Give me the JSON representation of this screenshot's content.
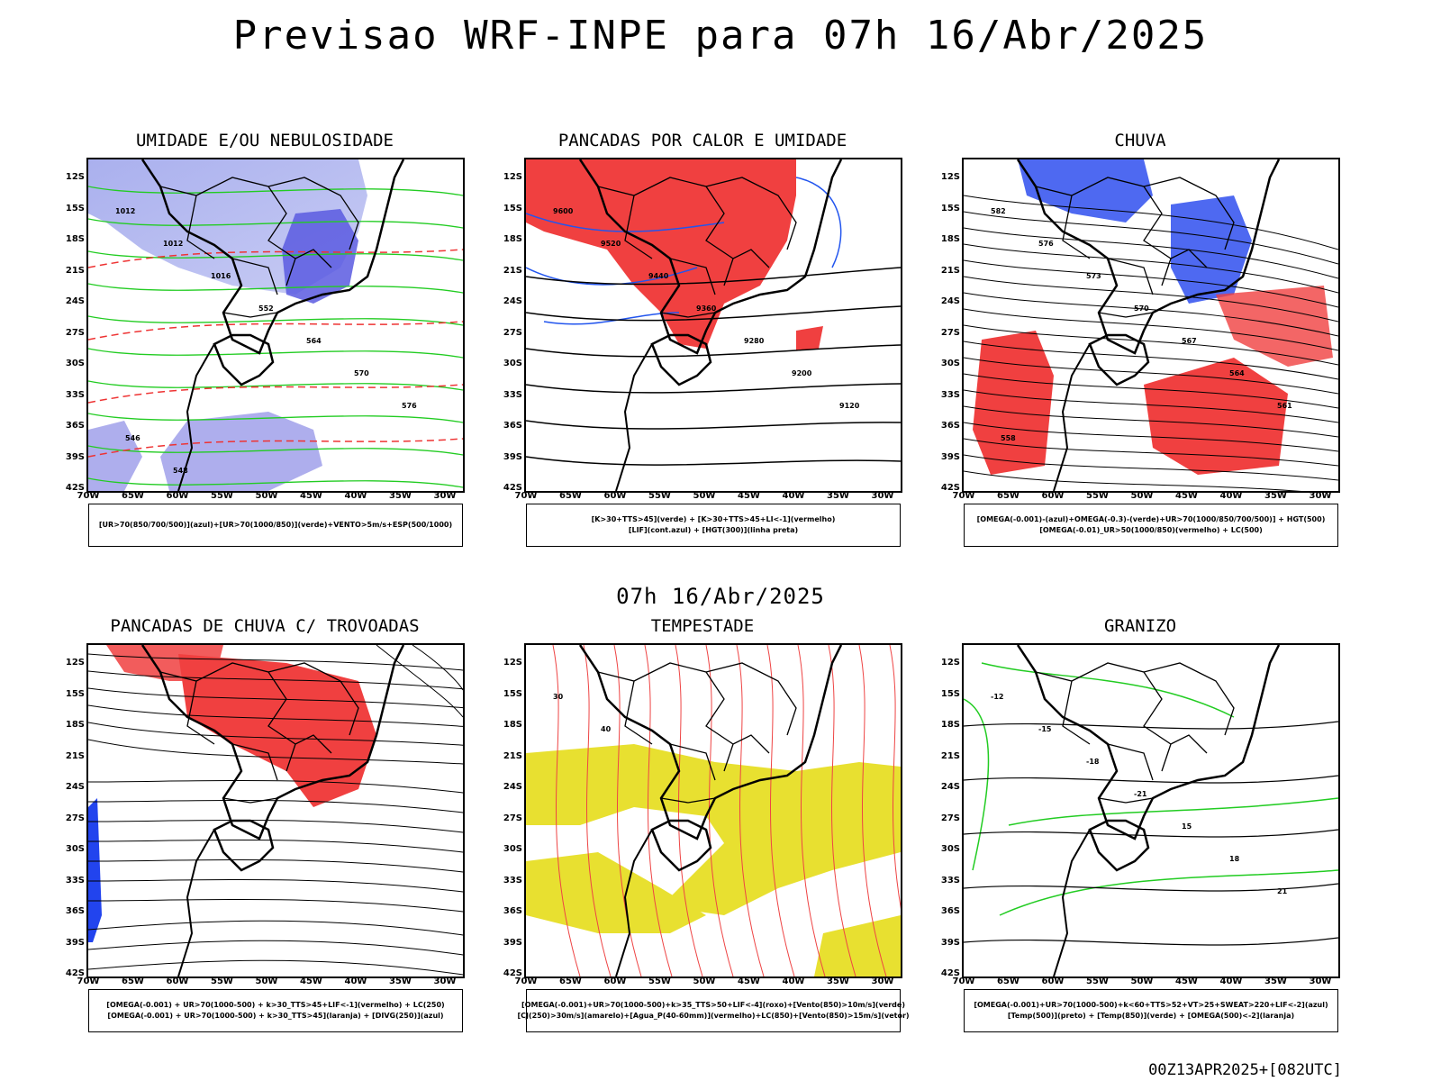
{
  "header": {
    "title": "Previsao WRF-INPE  para 07h 16/Abr/2025"
  },
  "middle_title": "07h 16/Abr/2025",
  "footer": {
    "run": "00Z13APR2025+[082UTC]"
  },
  "axes": {
    "latitudes": [
      "12S",
      "15S",
      "18S",
      "21S",
      "24S",
      "27S",
      "30S",
      "33S",
      "36S",
      "39S",
      "42S"
    ],
    "longitudes": [
      "70W",
      "65W",
      "60W",
      "55W",
      "50W",
      "45W",
      "40W",
      "35W",
      "30W"
    ]
  },
  "panels": [
    {
      "title": "UMIDADE E/OU NEBULOSIDADE",
      "legend": [
        "[UR>70(850/700/500)](azul)+[UR>70(1000/850)](verde)+VENTO>5m/s+ESP(500/1000)"
      ],
      "contour_labels": [
        "1012",
        "1012",
        "1016",
        "552",
        "564",
        "570",
        "576",
        "546",
        "548"
      ],
      "colors": {
        "fill": "#9a9ae8",
        "fill_dark": "#5a5ae0",
        "lines": "#22cc22",
        "dashed": "#ee3333"
      }
    },
    {
      "title": "PANCADAS POR CALOR E UMIDADE",
      "legend": [
        "[K>30+TTS>45](verde) + [K>30+TTS>45+LI<-1](vermelho)",
        "[LIF](cont.azul) + [HGT(300)](linha preta)"
      ],
      "contour_labels": [
        "9600",
        "9520",
        "9440",
        "9360",
        "9280",
        "9200",
        "9120"
      ],
      "colors": {
        "fill": "#f04040",
        "lines": "#2255ee",
        "hgt": "#000000"
      }
    },
    {
      "title": "CHUVA",
      "legend": [
        "[OMEGA(-0.001)-(azul)+OMEGA(-0.3)-(verde)+UR>70(1000/850/700/500)] + HGT(500)",
        "[OMEGA(-0.01)_UR>50(1000/850)(vermelho) + LC(500)"
      ],
      "contour_labels": [
        "582",
        "576",
        "573",
        "570",
        "567",
        "564",
        "561",
        "558"
      ],
      "colors": {
        "fill": "#f04040",
        "blue": "#2244ee",
        "green": "#22cc22"
      }
    },
    {
      "title": "PANCADAS DE CHUVA C/ TROVOADAS",
      "legend": [
        "[OMEGA(-0.001) + UR>70(1000-500) + k>30_TTS>45+LIF<-1](vermelho) + LC(250)",
        "[OMEGA(-0.001) + UR>70(1000-500) + k>30_TTS>45](laranja) + [DIVG(250)](azul)"
      ],
      "contour_labels": [],
      "colors": {
        "fill": "#f04040",
        "blue": "#2244ee"
      }
    },
    {
      "title": "TEMPESTADE",
      "legend": [
        "[OMEGA(-0.001)+UR>70(1000-500)+k>35_TTS>50+LIF<-4](roxo)+[Vento(850)>10m/s](verde)",
        "[CJ(250)>30m/s](amarelo)+[Agua_P(40-60mm)](vermelho)+LC(850)+[Vento(850)>15m/s](vetor)"
      ],
      "contour_labels": [
        "30",
        "40"
      ],
      "colors": {
        "fill": "#e8e030",
        "lines": "#ee4444",
        "green": "#22cc22"
      }
    },
    {
      "title": "GRANIZO",
      "legend": [
        "[OMEGA(-0.001)+UR>70(1000-500)+k<60+TTS>52+VT>25+SWEAT>220+LIF<-2](azul)",
        "[Temp(500)](preto) + [Temp(850)](verde) + [OMEGA(500)<-2](laranja)"
      ],
      "contour_labels": [
        "-12",
        "-15",
        "-18",
        "-21",
        "15",
        "18",
        "21"
      ],
      "colors": {
        "lines": "#22cc22",
        "orange": "#ee8822"
      }
    }
  ]
}
